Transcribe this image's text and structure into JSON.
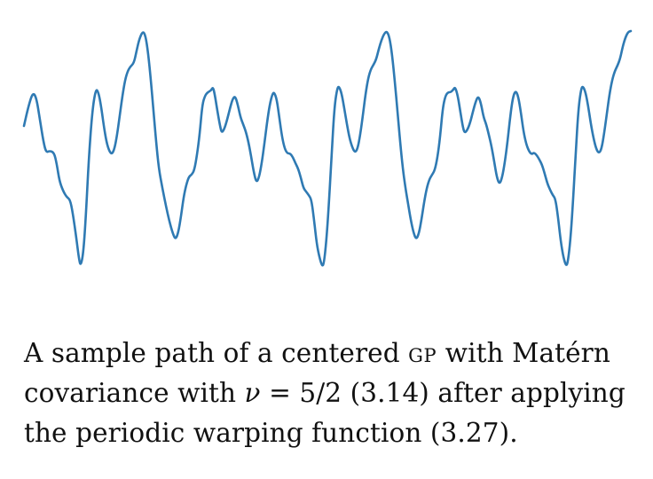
{
  "figure": {
    "line_color": "#2f7ab3"
  },
  "caption": {
    "part1": "A sample path of a centered ",
    "gp": "GP",
    "part2": " with Matérn",
    "part3": "covariance with ",
    "nu": "ν",
    "part4": " = 5/2 (3.14) after applying",
    "part5": "the periodic warping function (3.27)."
  }
}
